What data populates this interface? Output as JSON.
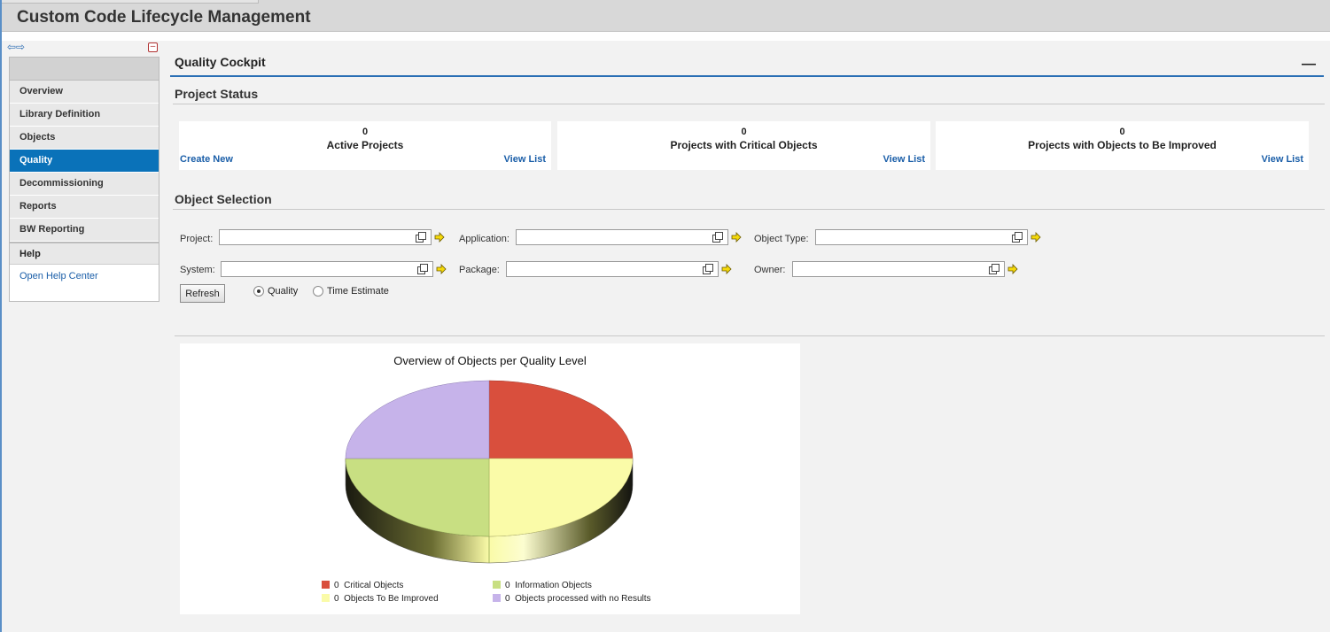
{
  "app": {
    "title": "Custom Code Lifecycle Management"
  },
  "nav": {
    "arrows": "⇦⇨"
  },
  "sidebar": {
    "items": [
      {
        "label": "Overview"
      },
      {
        "label": "Library Definition"
      },
      {
        "label": "Objects"
      },
      {
        "label": "Quality"
      },
      {
        "label": "Decommissioning"
      },
      {
        "label": "Reports"
      },
      {
        "label": "BW Reporting"
      }
    ],
    "active": "Quality",
    "help": {
      "title": "Help",
      "link": "Open Help Center"
    }
  },
  "cockpit": {
    "title": "Quality Cockpit",
    "minimize": "—"
  },
  "project_status": {
    "title": "Project Status",
    "boxes": [
      {
        "count": "0",
        "label": "Active Projects",
        "left_link": "Create New",
        "right_link": "View List"
      },
      {
        "count": "0",
        "label": "Projects with Critical Objects",
        "right_link": "View List"
      },
      {
        "count": "0",
        "label": "Projects with Objects to Be Improved",
        "right_link": "View List"
      }
    ]
  },
  "object_selection": {
    "title": "Object Selection",
    "fields": {
      "project": {
        "label": "Project:",
        "value": ""
      },
      "application": {
        "label": "Application:",
        "value": ""
      },
      "object_type": {
        "label": "Object Type:",
        "value": ""
      },
      "system": {
        "label": "System:",
        "value": ""
      },
      "package": {
        "label": "Package:",
        "value": ""
      },
      "owner": {
        "label": "Owner:",
        "value": ""
      }
    },
    "refresh_label": "Refresh",
    "radio_quality": "Quality",
    "radio_time": "Time Estimate",
    "selected_mode": "Quality"
  },
  "chart_data": {
    "type": "pie",
    "title": "Overview of Objects per Quality Level",
    "series": [
      {
        "name": "Critical Objects",
        "value": 0,
        "color": "#d94f3d"
      },
      {
        "name": "Objects To Be Improved",
        "value": 0,
        "color": "#fafba8"
      },
      {
        "name": "Information Objects",
        "value": 0,
        "color": "#c8df82"
      },
      {
        "name": "Objects processed with no Results",
        "value": 0,
        "color": "#c6b3ea"
      }
    ],
    "legend": [
      {
        "count": "0",
        "label": "Critical Objects",
        "color": "#d94f3d"
      },
      {
        "count": "0",
        "label": "Information Objects",
        "color": "#c8df82"
      },
      {
        "count": "0",
        "label": "Objects To Be Improved",
        "color": "#fafba8"
      },
      {
        "count": "0",
        "label": "Objects processed with no Results",
        "color": "#c6b3ea"
      }
    ]
  },
  "colors": {
    "accent": "#0a72b9",
    "link": "#1a5ea8"
  }
}
